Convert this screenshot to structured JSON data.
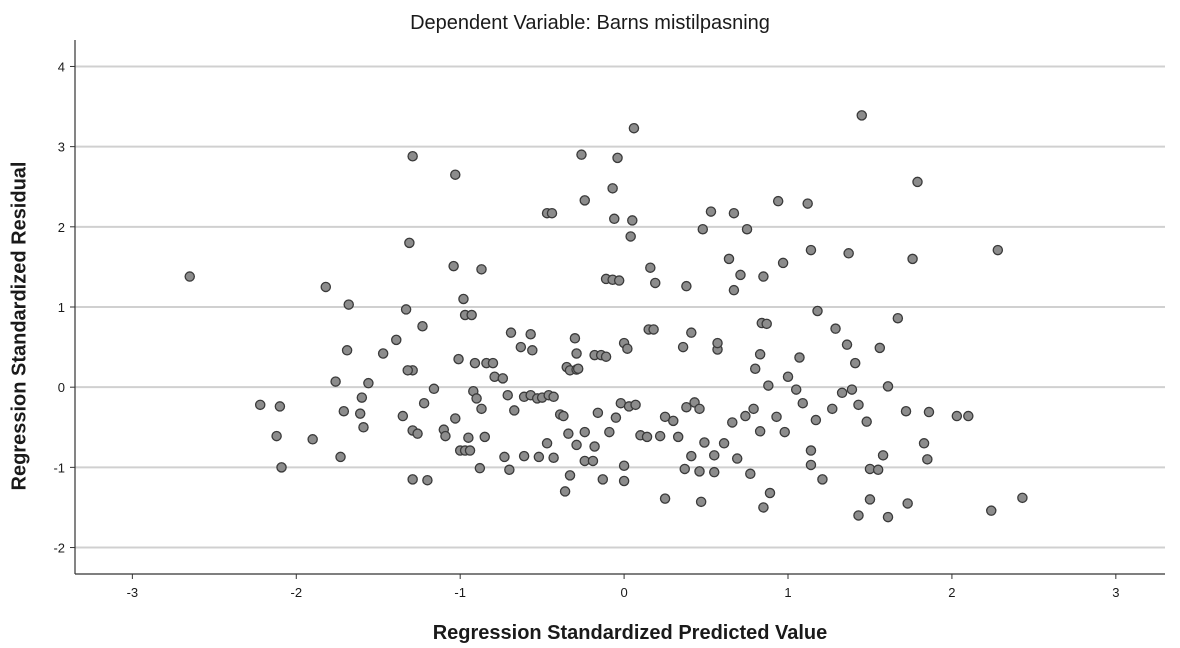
{
  "chart_data": {
    "type": "scatter",
    "title": "Dependent Variable: Barns mistilpasning",
    "xlabel": "Regression Standardized Predicted Value",
    "ylabel": "Regression Standardized Residual",
    "xlim": [
      -3.35,
      3.3
    ],
    "ylim": [
      -2.33,
      4.33
    ],
    "xticks": [
      -3,
      -2,
      -1,
      0,
      1,
      2,
      3
    ],
    "yticks": [
      -2,
      -1,
      0,
      1,
      2,
      3,
      4
    ],
    "grid": "horizontal",
    "marker_fill": "#8c8c8c",
    "marker_stroke": "#3a3a3a",
    "grid_color": "#d0d0d0",
    "points": [
      [
        -2.65,
        1.38
      ],
      [
        -1.82,
        1.25
      ],
      [
        -1.68,
        1.03
      ],
      [
        -1.33,
        0.97
      ],
      [
        -1.04,
        1.51
      ],
      [
        -0.98,
        1.1
      ],
      [
        -0.87,
        1.47
      ],
      [
        -1.29,
        2.88
      ],
      [
        -1.03,
        2.65
      ],
      [
        -1.31,
        1.8
      ],
      [
        -0.26,
        2.9
      ],
      [
        0.06,
        3.23
      ],
      [
        1.45,
        3.39
      ],
      [
        1.79,
        2.56
      ],
      [
        -0.04,
        2.86
      ],
      [
        -0.07,
        2.48
      ],
      [
        -0.24,
        2.33
      ],
      [
        -0.47,
        2.17
      ],
      [
        -0.44,
        2.17
      ],
      [
        -0.06,
        2.1
      ],
      [
        0.05,
        2.08
      ],
      [
        0.53,
        2.19
      ],
      [
        0.67,
        2.17
      ],
      [
        0.94,
        2.32
      ],
      [
        1.12,
        2.29
      ],
      [
        0.48,
        1.97
      ],
      [
        0.75,
        1.97
      ],
      [
        0.04,
        1.88
      ],
      [
        1.14,
        1.71
      ],
      [
        1.37,
        1.67
      ],
      [
        2.28,
        1.71
      ],
      [
        1.76,
        1.6
      ],
      [
        0.64,
        1.6
      ],
      [
        0.97,
        1.55
      ],
      [
        0.16,
        1.49
      ],
      [
        -0.11,
        1.35
      ],
      [
        -0.07,
        1.34
      ],
      [
        -0.03,
        1.33
      ],
      [
        0.19,
        1.3
      ],
      [
        0.38,
        1.26
      ],
      [
        0.67,
        1.21
      ],
      [
        0.71,
        1.4
      ],
      [
        0.85,
        1.38
      ],
      [
        -0.97,
        0.9
      ],
      [
        -0.93,
        0.9
      ],
      [
        -1.23,
        0.76
      ],
      [
        -1.39,
        0.59
      ],
      [
        -1.47,
        0.42
      ],
      [
        -1.69,
        0.46
      ],
      [
        -1.29,
        0.21
      ],
      [
        -1.32,
        0.21
      ],
      [
        -1.01,
        0.35
      ],
      [
        -0.91,
        0.3
      ],
      [
        -0.84,
        0.3
      ],
      [
        -0.8,
        0.3
      ],
      [
        -0.69,
        0.68
      ],
      [
        -0.57,
        0.66
      ],
      [
        -0.63,
        0.5
      ],
      [
        -0.56,
        0.46
      ],
      [
        -0.35,
        0.25
      ],
      [
        -0.33,
        0.21
      ],
      [
        -0.29,
        0.22
      ],
      [
        -0.28,
        0.23
      ],
      [
        -0.29,
        0.42
      ],
      [
        -0.3,
        0.61
      ],
      [
        -0.18,
        0.4
      ],
      [
        -0.14,
        0.4
      ],
      [
        -0.11,
        0.38
      ],
      [
        0.0,
        0.55
      ],
      [
        0.02,
        0.48
      ],
      [
        0.15,
        0.72
      ],
      [
        0.18,
        0.72
      ],
      [
        0.36,
        0.5
      ],
      [
        0.41,
        0.68
      ],
      [
        0.57,
        0.47
      ],
      [
        0.57,
        0.55
      ],
      [
        0.8,
        0.23
      ],
      [
        0.83,
        0.41
      ],
      [
        0.84,
        0.8
      ],
      [
        0.87,
        0.79
      ],
      [
        1.0,
        0.13
      ],
      [
        1.07,
        0.37
      ],
      [
        1.18,
        0.95
      ],
      [
        1.29,
        0.73
      ],
      [
        1.36,
        0.53
      ],
      [
        1.41,
        0.3
      ],
      [
        1.56,
        0.49
      ],
      [
        1.67,
        0.86
      ],
      [
        -1.76,
        0.07
      ],
      [
        -1.56,
        0.05
      ],
      [
        -1.6,
        -0.13
      ],
      [
        -1.59,
        -0.5
      ],
      [
        -1.71,
        -0.3
      ],
      [
        -1.73,
        -0.87
      ],
      [
        -1.61,
        -0.33
      ],
      [
        -1.35,
        -0.36
      ],
      [
        -1.29,
        -0.54
      ],
      [
        -1.26,
        -0.58
      ],
      [
        -1.22,
        -0.2
      ],
      [
        -1.16,
        -0.02
      ],
      [
        -1.1,
        -0.53
      ],
      [
        -1.09,
        -0.61
      ],
      [
        -1.03,
        -0.39
      ],
      [
        -1.0,
        -0.79
      ],
      [
        -0.97,
        -0.79
      ],
      [
        -0.94,
        -0.79
      ],
      [
        -0.92,
        -0.05
      ],
      [
        -0.9,
        -0.14
      ],
      [
        -0.87,
        -0.27
      ],
      [
        -0.85,
        -0.62
      ],
      [
        -0.79,
        0.13
      ],
      [
        -0.74,
        0.11
      ],
      [
        -0.71,
        -0.1
      ],
      [
        -0.67,
        -0.29
      ],
      [
        -0.61,
        -0.12
      ],
      [
        -0.57,
        -0.1
      ],
      [
        -0.53,
        -0.14
      ],
      [
        -0.5,
        -0.13
      ],
      [
        -0.46,
        -0.1
      ],
      [
        -0.43,
        -0.12
      ],
      [
        -0.39,
        -0.34
      ],
      [
        -0.37,
        -0.36
      ],
      [
        -0.34,
        -0.58
      ],
      [
        -0.29,
        -0.72
      ],
      [
        -0.24,
        -0.56
      ],
      [
        -0.18,
        -0.74
      ],
      [
        -0.16,
        -0.32
      ],
      [
        -0.09,
        -0.56
      ],
      [
        -0.05,
        -0.38
      ],
      [
        -0.02,
        -0.2
      ],
      [
        0.03,
        -0.24
      ],
      [
        0.07,
        -0.22
      ],
      [
        0.1,
        -0.6
      ],
      [
        0.14,
        -0.62
      ],
      [
        0.22,
        -0.61
      ],
      [
        0.25,
        -0.37
      ],
      [
        0.3,
        -0.42
      ],
      [
        0.33,
        -0.62
      ],
      [
        0.38,
        -0.25
      ],
      [
        0.43,
        -0.19
      ],
      [
        0.46,
        -0.27
      ],
      [
        0.49,
        -0.69
      ],
      [
        0.55,
        -0.85
      ],
      [
        0.61,
        -0.7
      ],
      [
        0.66,
        -0.44
      ],
      [
        0.69,
        -0.89
      ],
      [
        0.74,
        -0.36
      ],
      [
        0.79,
        -0.27
      ],
      [
        0.83,
        -0.55
      ],
      [
        0.88,
        0.02
      ],
      [
        0.93,
        -0.37
      ],
      [
        0.98,
        -0.56
      ],
      [
        1.05,
        -0.03
      ],
      [
        1.09,
        -0.2
      ],
      [
        1.14,
        -0.79
      ],
      [
        1.17,
        -0.41
      ],
      [
        1.21,
        -1.15
      ],
      [
        1.27,
        -0.27
      ],
      [
        1.33,
        -0.07
      ],
      [
        1.39,
        -0.03
      ],
      [
        1.43,
        -0.22
      ],
      [
        1.48,
        -0.43
      ],
      [
        1.5,
        -1.02
      ],
      [
        1.55,
        -1.03
      ],
      [
        1.58,
        -0.85
      ],
      [
        1.61,
        0.01
      ],
      [
        1.72,
        -0.3
      ],
      [
        1.83,
        -0.7
      ],
      [
        1.86,
        -0.31
      ],
      [
        1.85,
        -0.9
      ],
      [
        2.03,
        -0.36
      ],
      [
        2.1,
        -0.36
      ],
      [
        -2.22,
        -0.22
      ],
      [
        -2.1,
        -0.24
      ],
      [
        -2.12,
        -0.61
      ],
      [
        -2.09,
        -1.0
      ],
      [
        -1.9,
        -0.65
      ],
      [
        -1.29,
        -1.15
      ],
      [
        -1.2,
        -1.16
      ],
      [
        -0.95,
        -0.63
      ],
      [
        -0.88,
        -1.01
      ],
      [
        -0.73,
        -0.87
      ],
      [
        -0.7,
        -1.03
      ],
      [
        -0.61,
        -0.86
      ],
      [
        -0.52,
        -0.87
      ],
      [
        -0.47,
        -0.7
      ],
      [
        -0.43,
        -0.88
      ],
      [
        -0.36,
        -1.3
      ],
      [
        -0.33,
        -1.1
      ],
      [
        -0.24,
        -0.92
      ],
      [
        -0.19,
        -0.92
      ],
      [
        -0.13,
        -1.15
      ],
      [
        0.0,
        -1.17
      ],
      [
        0.0,
        -0.98
      ],
      [
        0.25,
        -1.39
      ],
      [
        0.37,
        -1.02
      ],
      [
        0.41,
        -0.86
      ],
      [
        0.46,
        -1.05
      ],
      [
        0.47,
        -1.43
      ],
      [
        0.55,
        -1.06
      ],
      [
        0.77,
        -1.08
      ],
      [
        0.85,
        -1.5
      ],
      [
        0.89,
        -1.32
      ],
      [
        1.14,
        -0.97
      ],
      [
        1.43,
        -1.6
      ],
      [
        1.5,
        -1.4
      ],
      [
        1.61,
        -1.62
      ],
      [
        1.73,
        -1.45
      ],
      [
        2.24,
        -1.54
      ],
      [
        2.43,
        -1.38
      ]
    ]
  }
}
